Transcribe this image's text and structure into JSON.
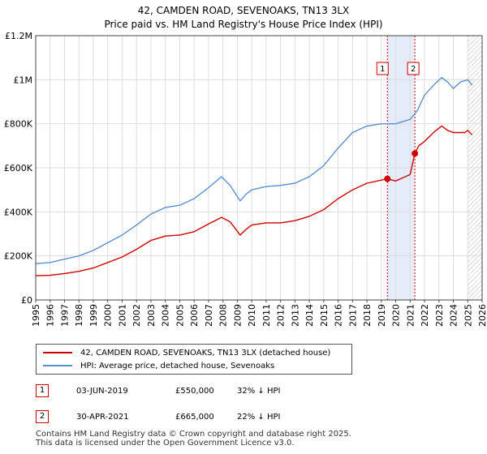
{
  "title": {
    "line1": "42, CAMDEN ROAD, SEVENOAKS, TN13 3LX",
    "line2": "Price paid vs. HM Land Registry's House Price Index (HPI)"
  },
  "chart_data": {
    "type": "line",
    "x_ticks": [
      "1995",
      "1996",
      "1997",
      "1998",
      "1999",
      "2000",
      "2001",
      "2002",
      "2003",
      "2004",
      "2005",
      "2006",
      "2007",
      "2008",
      "2009",
      "2010",
      "2011",
      "2012",
      "2013",
      "2014",
      "2015",
      "2016",
      "2017",
      "2018",
      "2019",
      "2020",
      "2021",
      "2022",
      "2023",
      "2024",
      "2025",
      "2026"
    ],
    "y_ticks": [
      "£0",
      "£200K",
      "£400K",
      "£600K",
      "£800K",
      "£1M",
      "£1.2M"
    ],
    "xlim": [
      1995,
      2026
    ],
    "ylim": [
      0,
      1200000
    ],
    "series": [
      {
        "name": "42, CAMDEN ROAD, SEVENOAKS, TN13 3LX (detached house)",
        "color": "#cc0000",
        "x": [
          1995,
          1996,
          1997,
          1998,
          1999,
          2000,
          2001,
          2002,
          2003,
          2004,
          2005,
          2006,
          2007,
          2007.9,
          2008.5,
          2009.2,
          2009.6,
          2010,
          2011,
          2012,
          2013,
          2014,
          2015,
          2016,
          2017,
          2018,
          2019.42,
          2020,
          2021.0,
          2021.33,
          2021.6,
          2022,
          2022.7,
          2023.2,
          2023.6,
          2024,
          2024.8,
          2025.0,
          2025.3
        ],
        "y": [
          110000,
          112000,
          120000,
          130000,
          145000,
          170000,
          195000,
          230000,
          270000,
          290000,
          295000,
          310000,
          345000,
          375000,
          355000,
          295000,
          320000,
          340000,
          350000,
          350000,
          360000,
          380000,
          410000,
          460000,
          500000,
          530000,
          550000,
          540000,
          570000,
          665000,
          700000,
          720000,
          765000,
          790000,
          770000,
          760000,
          760000,
          770000,
          750000
        ]
      },
      {
        "name": "HPI: Average price, detached house, Sevenoaks",
        "color": "#5b8fd0",
        "x": [
          1995,
          1996,
          1997,
          1998,
          1999,
          2000,
          2001,
          2002,
          2003,
          2004,
          2005,
          2006,
          2007,
          2007.9,
          2008.5,
          2009.2,
          2009.6,
          2010,
          2011,
          2012,
          2013,
          2014,
          2015,
          2016,
          2017,
          2018,
          2019,
          2020,
          2021,
          2021.5,
          2022,
          2022.7,
          2023.2,
          2023.6,
          2024,
          2024.5,
          2025.0,
          2025.3
        ],
        "y": [
          165000,
          170000,
          185000,
          200000,
          225000,
          260000,
          295000,
          340000,
          390000,
          420000,
          430000,
          460000,
          510000,
          560000,
          520000,
          450000,
          480000,
          500000,
          515000,
          520000,
          530000,
          560000,
          610000,
          690000,
          760000,
          790000,
          800000,
          800000,
          820000,
          860000,
          930000,
          980000,
          1010000,
          990000,
          960000,
          990000,
          1000000,
          975000
        ]
      }
    ],
    "vspan": [
      2019.42,
      2021.33
    ],
    "markers": [
      {
        "label": "1",
        "x": 2019.42,
        "y": 550000
      },
      {
        "label": "2",
        "x": 2021.33,
        "y": 665000
      }
    ],
    "hatch_from": 2025.0
  },
  "legend": {
    "property_label": "42, CAMDEN ROAD, SEVENOAKS, TN13 3LX (detached house)",
    "hpi_label": "HPI: Average price, detached house, Sevenoaks",
    "property_color": "#cc0000",
    "hpi_color": "#5b8fd0"
  },
  "transactions": [
    {
      "num": "1",
      "date": "03-JUN-2019",
      "price": "£550,000",
      "hpi": "32% ↓ HPI"
    },
    {
      "num": "2",
      "date": "30-APR-2021",
      "price": "£665,000",
      "hpi": "22% ↓ HPI"
    }
  ],
  "footer": {
    "line1": "Contains HM Land Registry data © Crown copyright and database right 2025.",
    "line2": "This data is licensed under the Open Government Licence v3.0."
  }
}
